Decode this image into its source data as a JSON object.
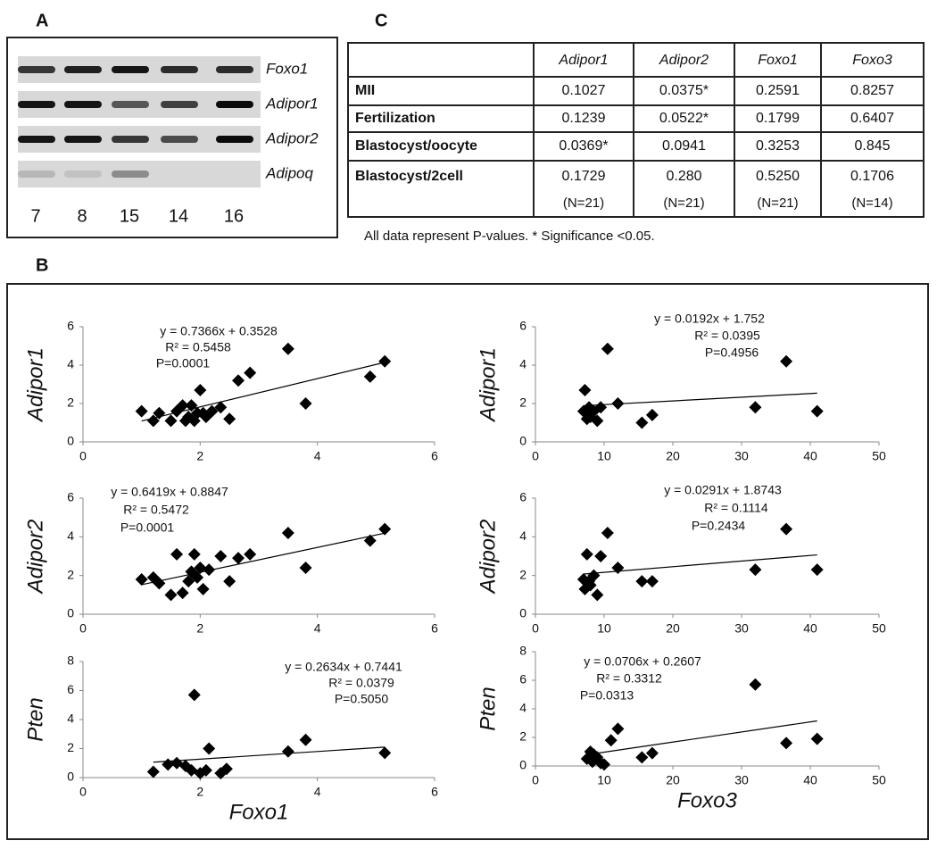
{
  "panels": {
    "a": "A",
    "b": "B",
    "c": "C"
  },
  "gel": {
    "genes": [
      "Foxo1",
      "Adipor1",
      "Adipor2",
      "Adipoq"
    ],
    "lanes": [
      "7",
      "8",
      "15",
      "14",
      "16"
    ]
  },
  "table": {
    "columns": [
      "Adipor1",
      "Adipor2",
      "Foxo1",
      "Foxo3"
    ],
    "rows": [
      {
        "label": "MII",
        "cells": [
          "0.1027",
          "0.0375*",
          "0.2591",
          "0.8257"
        ]
      },
      {
        "label": "Fertilization",
        "cells": [
          "0.1239",
          "0.0522*",
          "0.1799",
          "0.6407"
        ]
      },
      {
        "label": "Blastocyst/oocyte",
        "cells": [
          "0.0369*",
          "0.0941",
          "0.3253",
          "0.845"
        ]
      },
      {
        "label": "Blastocyst/2cell",
        "cells": [
          "0.1729",
          "0.280",
          "0.5250",
          "0.1706"
        ],
        "n": [
          "(N=21)",
          "(N=21)",
          "(N=21)",
          "(N=14)"
        ]
      }
    ],
    "note": "All data represent P-values. * Significance <0.05."
  },
  "chart_data": [
    {
      "type": "scatter",
      "ylabel": "Adipor1",
      "x": [
        1.0,
        1.2,
        1.3,
        1.5,
        1.6,
        1.7,
        1.75,
        1.8,
        1.85,
        1.9,
        1.95,
        2.0,
        2.05,
        2.1,
        2.2,
        2.35,
        2.5,
        2.65,
        2.85,
        3.5,
        3.8,
        4.9,
        5.15
      ],
      "values": [
        1.6,
        1.1,
        1.5,
        1.1,
        1.6,
        1.9,
        1.1,
        1.3,
        1.9,
        1.1,
        1.5,
        2.7,
        1.5,
        1.3,
        1.6,
        1.8,
        1.2,
        3.2,
        3.6,
        4.85,
        2.0,
        3.4,
        4.2
      ],
      "xlim": [
        0,
        6
      ],
      "xticks": [
        0,
        2,
        4,
        6
      ],
      "ylim": [
        0,
        6
      ],
      "yticks": [
        0,
        2,
        4,
        6
      ],
      "fit": {
        "slope": 0.7366,
        "intercept": 0.3528
      },
      "annotations": [
        "y = 0.7366x + 0.3528",
        "R² = 0.5458",
        "P=0.0001"
      ]
    },
    {
      "type": "scatter",
      "ylabel": "Adipor2",
      "x": [
        1.0,
        1.2,
        1.3,
        1.5,
        1.6,
        1.7,
        1.8,
        1.85,
        1.9,
        1.95,
        2.0,
        2.05,
        2.15,
        2.35,
        2.5,
        2.65,
        2.85,
        3.5,
        3.8,
        4.9,
        5.15
      ],
      "values": [
        1.8,
        1.9,
        1.6,
        1.0,
        3.1,
        1.1,
        1.7,
        2.2,
        3.1,
        1.9,
        2.4,
        1.3,
        2.3,
        3.0,
        1.7,
        2.9,
        3.1,
        4.2,
        2.4,
        3.8,
        4.4
      ],
      "xlim": [
        0,
        6
      ],
      "xticks": [
        0,
        2,
        4,
        6
      ],
      "ylim": [
        0,
        6
      ],
      "yticks": [
        0,
        2,
        4,
        6
      ],
      "fit": {
        "slope": 0.6419,
        "intercept": 0.8847
      },
      "annotations": [
        "y = 0.6419x + 0.8847",
        "R² = 0.5472",
        "P=0.0001"
      ]
    },
    {
      "type": "scatter",
      "ylabel": "Pten",
      "xlabel": "Foxo1",
      "x": [
        1.2,
        1.45,
        1.6,
        1.75,
        1.85,
        1.9,
        2.0,
        2.1,
        2.15,
        2.35,
        2.45,
        3.5,
        3.8,
        5.15
      ],
      "values": [
        0.4,
        0.9,
        1.0,
        0.8,
        0.5,
        5.7,
        0.3,
        0.5,
        2.0,
        0.3,
        0.6,
        1.8,
        2.6,
        1.7
      ],
      "xlim": [
        0,
        6
      ],
      "xticks": [
        0,
        2,
        4,
        6
      ],
      "ylim": [
        0,
        8
      ],
      "yticks": [
        0,
        2,
        4,
        6,
        8
      ],
      "fit": {
        "slope": 0.2634,
        "intercept": 0.7441
      },
      "annotations": [
        "y = 0.2634x + 0.7441",
        "R² = 0.0379",
        "P=0.5050"
      ]
    },
    {
      "type": "scatter",
      "ylabel": "Adipor1",
      "x": [
        7,
        7.2,
        7.5,
        7.8,
        8,
        8.5,
        9,
        9.5,
        10.5,
        12,
        15.5,
        17,
        32,
        36.5,
        41
      ],
      "values": [
        1.6,
        2.7,
        1.2,
        1.8,
        1.3,
        1.6,
        1.1,
        1.8,
        4.85,
        2.0,
        1.0,
        1.4,
        1.8,
        4.2,
        1.6
      ],
      "xlim": [
        0,
        50
      ],
      "xticks": [
        0,
        10,
        20,
        30,
        40,
        50
      ],
      "ylim": [
        0,
        6
      ],
      "yticks": [
        0,
        2,
        4,
        6
      ],
      "fit": {
        "slope": 0.0192,
        "intercept": 1.752
      },
      "annotations": [
        "y = 0.0192x + 1.752",
        "R² = 0.0395",
        "P=0.4956"
      ]
    },
    {
      "type": "scatter",
      "ylabel": "Adipor2",
      "x": [
        7,
        7.2,
        7.5,
        7.8,
        8,
        8.5,
        9,
        9.5,
        10.5,
        12,
        15.5,
        17,
        32,
        36.5,
        41
      ],
      "values": [
        1.8,
        1.3,
        3.1,
        1.7,
        1.5,
        2.0,
        1.0,
        3.0,
        4.2,
        2.4,
        1.7,
        1.7,
        2.3,
        4.4,
        2.3
      ],
      "xlim": [
        0,
        50
      ],
      "xticks": [
        0,
        10,
        20,
        30,
        40,
        50
      ],
      "ylim": [
        0,
        6
      ],
      "yticks": [
        0,
        2,
        4,
        6
      ],
      "fit": {
        "slope": 0.0291,
        "intercept": 1.8743
      },
      "annotations": [
        "y = 0.0291x + 1.8743",
        "R² = 0.1114",
        "P=0.2434"
      ]
    },
    {
      "type": "scatter",
      "ylabel": "Pten",
      "xlabel": "Foxo3",
      "x": [
        7.5,
        8,
        8.3,
        8.5,
        9,
        9.5,
        10,
        11,
        12,
        15.5,
        17,
        32,
        36.5,
        41
      ],
      "values": [
        0.5,
        1.0,
        0.3,
        0.8,
        0.6,
        0.2,
        0.1,
        1.8,
        2.6,
        0.6,
        0.9,
        5.7,
        1.6,
        1.9
      ],
      "xlim": [
        0,
        50
      ],
      "xticks": [
        0,
        10,
        20,
        30,
        40,
        50
      ],
      "ylim": [
        0,
        8
      ],
      "yticks": [
        0,
        2,
        4,
        6,
        8
      ],
      "fit": {
        "slope": 0.0706,
        "intercept": 0.2607
      },
      "annotations": [
        "y = 0.0706x + 0.2607",
        "R² = 0.3312",
        "P=0.0313"
      ]
    }
  ]
}
